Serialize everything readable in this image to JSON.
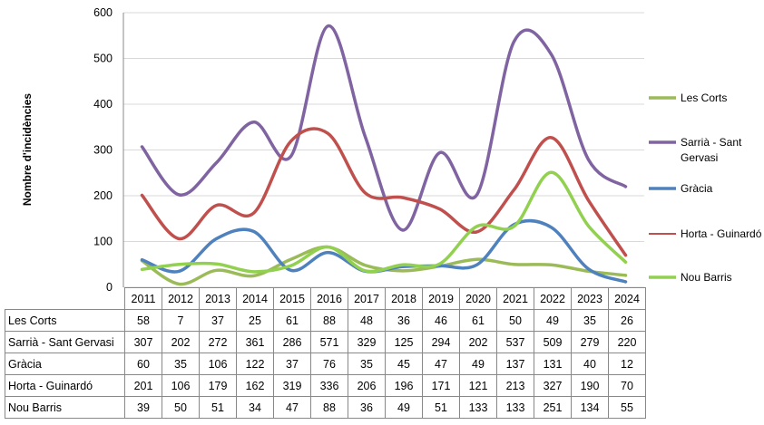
{
  "chart_data": {
    "type": "line",
    "title": "",
    "xlabel": "",
    "ylabel": "Nombre d'incidències",
    "ylim": [
      0,
      600
    ],
    "yticks": [
      "0",
      "100",
      "200",
      "300",
      "400",
      "500",
      "600"
    ],
    "grid": true,
    "legend_position": "right",
    "categories": [
      "2011",
      "2012",
      "2013",
      "2014",
      "2015",
      "2016",
      "2017",
      "2018",
      "2019",
      "2020",
      "2021",
      "2022",
      "2023",
      "2024"
    ],
    "series": [
      {
        "name": "Les Corts",
        "color": "#9BBB59",
        "values": [
          58,
          7,
          37,
          25,
          61,
          88,
          48,
          36,
          46,
          61,
          50,
          49,
          35,
          26
        ]
      },
      {
        "name": "Sarrià - Sant Gervasi",
        "color": "#8064A2",
        "values": [
          307,
          202,
          272,
          361,
          286,
          571,
          329,
          125,
          294,
          202,
          537,
          509,
          279,
          220
        ]
      },
      {
        "name": "Gràcia",
        "color": "#4F81BD",
        "values": [
          60,
          35,
          106,
          122,
          37,
          76,
          35,
          45,
          47,
          49,
          137,
          131,
          40,
          12
        ]
      },
      {
        "name": "Horta - Guinardó",
        "color": "#C0504D",
        "values": [
          201,
          106,
          179,
          162,
          319,
          336,
          206,
          196,
          171,
          121,
          213,
          327,
          190,
          70
        ]
      },
      {
        "name": "Nou Barris",
        "color": "#92D050",
        "values": [
          39,
          50,
          51,
          34,
          47,
          88,
          36,
          49,
          51,
          133,
          133,
          251,
          134,
          55
        ]
      }
    ]
  }
}
